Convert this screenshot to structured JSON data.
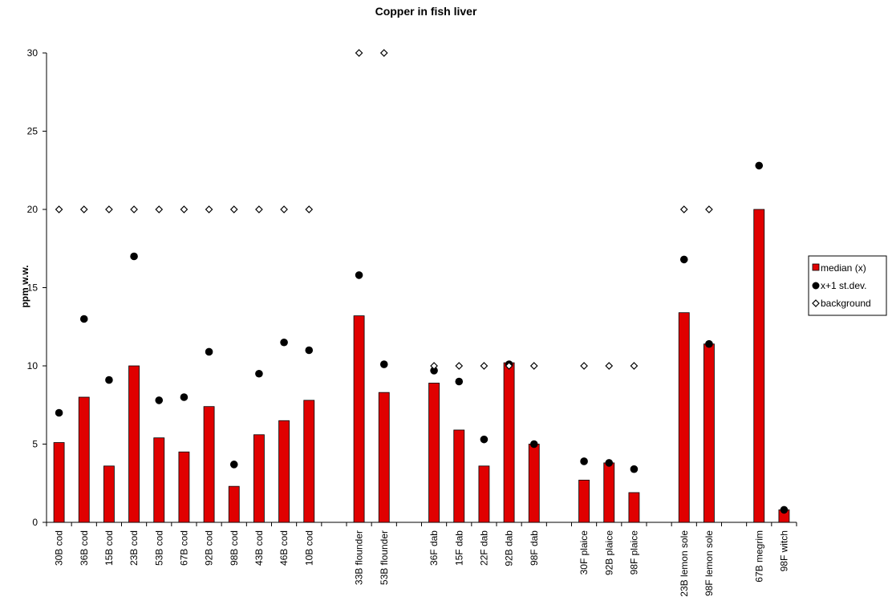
{
  "chart_data": {
    "type": "bar",
    "title": "Copper in fish liver",
    "xlabel": "",
    "ylabel": "ppm w.w.",
    "ylim": [
      0,
      30
    ],
    "yticks": [
      0,
      5,
      10,
      15,
      20,
      25,
      30
    ],
    "grid": false,
    "legend_position": "right",
    "colors": {
      "median": "#e00000",
      "sd": "#000000",
      "background": "#000000"
    },
    "categories": [
      "30B cod",
      "36B cod",
      "15B cod",
      "23B cod",
      "53B cod",
      "67B cod",
      "92B cod",
      "98B cod",
      "43B cod",
      "46B cod",
      "10B cod",
      "",
      "33B flounder",
      "53B flounder",
      "",
      "36F dab",
      "15F dab",
      "22F dab",
      "92B dab",
      "98F dab",
      "",
      "30F plaice",
      "92B plaice",
      "98F plaice",
      "",
      "23B lemon sole",
      "98F lemon sole",
      "",
      "67B megrim",
      "98F witch"
    ],
    "series": [
      {
        "name": "median (x)",
        "kind": "bar",
        "values": [
          5.1,
          8.0,
          3.6,
          10.0,
          5.4,
          4.5,
          7.4,
          2.3,
          5.6,
          6.5,
          7.8,
          null,
          13.2,
          8.3,
          null,
          8.9,
          5.9,
          3.6,
          10.2,
          5.0,
          null,
          2.7,
          3.8,
          1.9,
          null,
          13.4,
          11.4,
          null,
          20.0,
          0.8
        ]
      },
      {
        "name": "x+1 st.dev.",
        "kind": "point-circle",
        "values": [
          7.0,
          13.0,
          9.1,
          17.0,
          7.8,
          8.0,
          10.9,
          3.7,
          9.5,
          11.5,
          11.0,
          null,
          15.8,
          10.1,
          null,
          9.7,
          9.0,
          5.3,
          10.1,
          5.0,
          null,
          3.9,
          3.8,
          3.4,
          null,
          16.8,
          11.4,
          null,
          22.8,
          0.8
        ]
      },
      {
        "name": "background",
        "kind": "point-diamond",
        "values": [
          20,
          20,
          20,
          20,
          20,
          20,
          20,
          20,
          20,
          20,
          20,
          null,
          30,
          30,
          null,
          10,
          10,
          10,
          10,
          10,
          null,
          10,
          10,
          10,
          null,
          20,
          20,
          null,
          null,
          null
        ]
      }
    ]
  }
}
